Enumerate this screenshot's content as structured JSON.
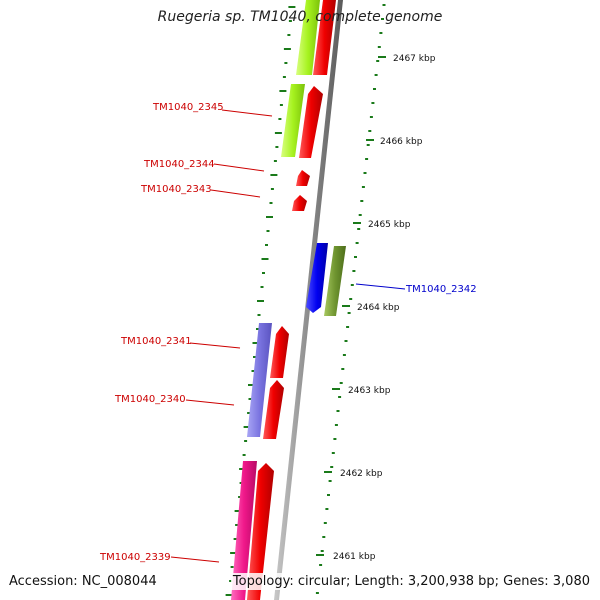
{
  "title": "Ruegeria sp. TM1040, complete genome",
  "accession": "Accession: NC_008044",
  "summary": "Topology: circular; Length: 3,200,938 bp; Genes: 3,080",
  "colors": {
    "backbone": "#8c8c8c",
    "tick": "#1a7a1a",
    "label_red": "#cc0000",
    "label_blue": "#0000cc"
  },
  "scale_ticks": [
    {
      "label": "2467 kbp"
    },
    {
      "label": "2466 kbp"
    },
    {
      "label": "2465 kbp"
    },
    {
      "label": "2464 kbp"
    },
    {
      "label": "2463 kbp"
    },
    {
      "label": "2462 kbp"
    },
    {
      "label": "2461 kbp"
    }
  ],
  "genes": [
    {
      "label": "TM1040_2345",
      "label_color": "#cc0000",
      "icon": "gene-arrow-up"
    },
    {
      "label": "TM1040_2344",
      "label_color": "#cc0000",
      "icon": "gene-arrow-up"
    },
    {
      "label": "TM1040_2343",
      "label_color": "#cc0000",
      "icon": "gene-arrow-up"
    },
    {
      "label": "TM1040_2342",
      "label_color": "#0000cc",
      "icon": "gene-arrow-down"
    },
    {
      "label": "TM1040_2341",
      "label_color": "#cc0000",
      "icon": "gene-arrow-up"
    },
    {
      "label": "TM1040_2340",
      "label_color": "#cc0000",
      "icon": "gene-arrow-up"
    },
    {
      "label": "TM1040_2339",
      "label_color": "#cc0000",
      "icon": "gene-arrow-up"
    }
  ]
}
